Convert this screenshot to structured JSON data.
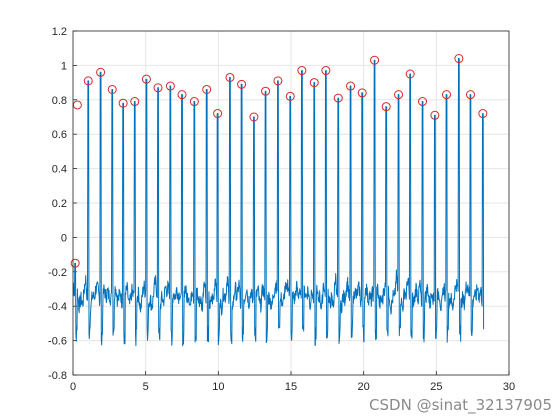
{
  "watermark": "CSDN @sinat_32137905",
  "colors": {
    "signal": "#0072BD",
    "peak_marker": "#D62728",
    "grid": "#E6E6E6",
    "axis": "#262626"
  },
  "chart_data": {
    "type": "line",
    "title": "",
    "xlabel": "",
    "ylabel": "",
    "xlim": [
      0,
      30
    ],
    "ylim": [
      -0.8,
      1.2
    ],
    "xticks": [
      "0",
      "5",
      "10",
      "15",
      "20",
      "25",
      "30"
    ],
    "yticks": [
      "-0.8",
      "-0.6",
      "-0.4",
      "-0.2",
      "0",
      "0.2",
      "0.4",
      "0.6",
      "0.8",
      "1",
      "1.2"
    ],
    "grid": true,
    "series": [
      {
        "style": "line",
        "description": "ECG-like trace: baseline near -0.35, sharp R-wave spikes at each peak time",
        "baseline": -0.35,
        "peaks_x": [
          0.15,
          1.05,
          1.9,
          2.7,
          3.45,
          4.25,
          5.05,
          5.85,
          6.7,
          7.5,
          8.35,
          9.2,
          9.95,
          10.8,
          11.6,
          12.45,
          13.25,
          14.1,
          14.95,
          15.75,
          16.6,
          17.4,
          18.25,
          19.1,
          19.9,
          20.75,
          21.55,
          22.4,
          23.2,
          24.05,
          24.9,
          25.7,
          26.55,
          27.35,
          28.2
        ],
        "peaks_y": [
          -0.15,
          0.91,
          0.96,
          0.86,
          0.78,
          0.79,
          0.92,
          0.87,
          0.88,
          0.83,
          0.79,
          0.86,
          0.72,
          0.93,
          0.89,
          0.7,
          0.85,
          0.91,
          0.82,
          0.97,
          0.9,
          0.97,
          0.81,
          0.88,
          0.84,
          1.03,
          0.76,
          0.83,
          0.95,
          0.79,
          0.71,
          0.83,
          1.04,
          0.83,
          0.72
        ]
      },
      {
        "style": "markers",
        "marker": "open-circle",
        "x": [
          0.15,
          0.3,
          1.05,
          1.9,
          2.7,
          3.45,
          4.25,
          5.05,
          5.85,
          6.7,
          7.5,
          8.35,
          9.2,
          9.95,
          10.8,
          11.6,
          12.45,
          13.25,
          14.1,
          14.95,
          15.75,
          16.6,
          17.4,
          18.25,
          19.1,
          19.9,
          20.75,
          21.55,
          22.4,
          23.2,
          24.05,
          24.9,
          25.7,
          26.55,
          27.35,
          28.2
        ],
        "y": [
          -0.15,
          0.77,
          0.91,
          0.96,
          0.86,
          0.78,
          0.79,
          0.92,
          0.87,
          0.88,
          0.83,
          0.79,
          0.86,
          0.72,
          0.93,
          0.89,
          0.7,
          0.85,
          0.91,
          0.82,
          0.97,
          0.9,
          0.97,
          0.81,
          0.88,
          0.84,
          1.03,
          0.76,
          0.83,
          0.95,
          0.79,
          0.71,
          0.83,
          1.04,
          0.83,
          0.72
        ]
      }
    ]
  }
}
